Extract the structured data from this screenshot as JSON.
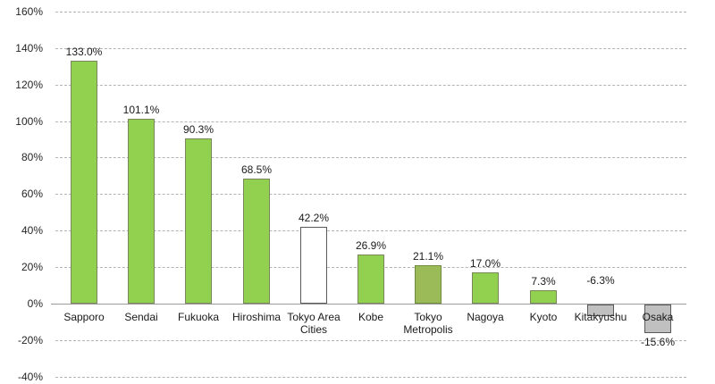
{
  "chart_data": {
    "type": "bar",
    "title": "",
    "xlabel": "",
    "ylabel": "",
    "categories": [
      "Sapporo",
      "Sendai",
      "Fukuoka",
      "Hiroshima",
      "Tokyo Area Cities",
      "Kobe",
      "Tokyo Metropolis",
      "Nagoya",
      "Kyoto",
      "Kitakyushu",
      "Osaka"
    ],
    "values": [
      133.0,
      101.1,
      90.3,
      68.5,
      42.2,
      26.9,
      21.1,
      17.0,
      7.3,
      -6.3,
      -15.6
    ],
    "data_labels": [
      "133.0%",
      "101.1%",
      "90.3%",
      "68.5%",
      "42.2%",
      "26.9%",
      "21.1%",
      "17.0%",
      "7.3%",
      "-6.3%",
      "-15.6%"
    ],
    "ylim": [
      -40,
      160
    ],
    "ytick_step": 20,
    "ytick_labels": [
      "160%",
      "140%",
      "120%",
      "100%",
      "80%",
      "60%",
      "40%",
      "20%",
      "0%",
      "-20%",
      "-40%"
    ],
    "grid": "horizontal-dashed",
    "legend": "none",
    "bar_styles": [
      {
        "fill": "#92d050",
        "border": "#79855a"
      },
      {
        "fill": "#92d050",
        "border": "#79855a"
      },
      {
        "fill": "#92d050",
        "border": "#79855a"
      },
      {
        "fill": "#92d050",
        "border": "#79855a"
      },
      {
        "fill": "#ffffff",
        "border": "#595959"
      },
      {
        "fill": "#92d050",
        "border": "#79855a"
      },
      {
        "fill": "#9bbb59",
        "border": "#71893f"
      },
      {
        "fill": "#92d050",
        "border": "#79855a"
      },
      {
        "fill": "#92d050",
        "border": "#79855a"
      },
      {
        "fill": "#c0c0c0",
        "border": "#595959"
      },
      {
        "fill": "#c0c0c0",
        "border": "#595959"
      }
    ],
    "colors": {
      "gridline": "#b3b3b3",
      "axis_line": "#9a9a9a",
      "text": "#1a1a1a",
      "background": "#ffffff"
    }
  }
}
